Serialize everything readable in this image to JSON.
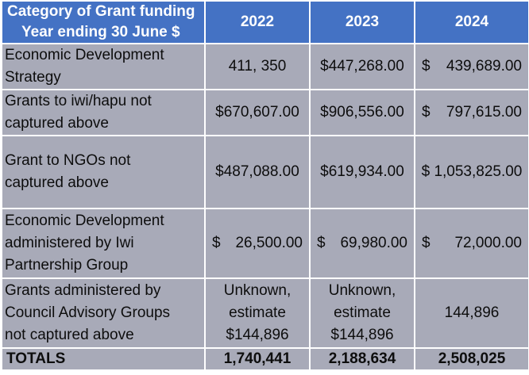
{
  "header": {
    "category_line1": "Category of Grant funding",
    "category_line2": "Year ending 30 June $",
    "years": [
      "2022",
      "2023",
      "2024"
    ]
  },
  "rows": [
    {
      "category": [
        "Economic Development",
        "Strategy"
      ],
      "y2022": "411, 350",
      "y2023": "$447,268.00",
      "y2024_symbol": "$",
      "y2024_amount": "439,689.00"
    },
    {
      "category": [
        "Grants to iwi/hapu not",
        "captured above"
      ],
      "y2022": "$670,607.00",
      "y2023": "$906,556.00",
      "y2024_symbol": "$",
      "y2024_amount": "797,615.00"
    },
    {
      "category": [
        "Grant to NGOs not",
        "captured above"
      ],
      "y2022": "$487,088.00",
      "y2023": "$619,934.00",
      "y2024": "$ 1,053,825.00"
    },
    {
      "category": [
        "Economic Development",
        "administered by Iwi",
        "Partnership Group"
      ],
      "y2022_symbol": "$",
      "y2022_amount": "26,500.00",
      "y2023_symbol": "$",
      "y2023_amount": "69,980.00",
      "y2024_symbol": "$",
      "y2024_amount": "72,000.00"
    },
    {
      "category": [
        "Grants administered by",
        "Council Advisory Groups",
        "not captured above"
      ],
      "y2022": [
        "Unknown,",
        "estimate",
        "$144,896"
      ],
      "y2023": [
        "Unknown,",
        "estimate",
        "$144,896"
      ],
      "y2024": "144,896"
    }
  ],
  "totals": {
    "label": "TOTALS",
    "y2022": "1,740,441",
    "y2023": "2,188,634",
    "y2024": "2,508,025"
  }
}
